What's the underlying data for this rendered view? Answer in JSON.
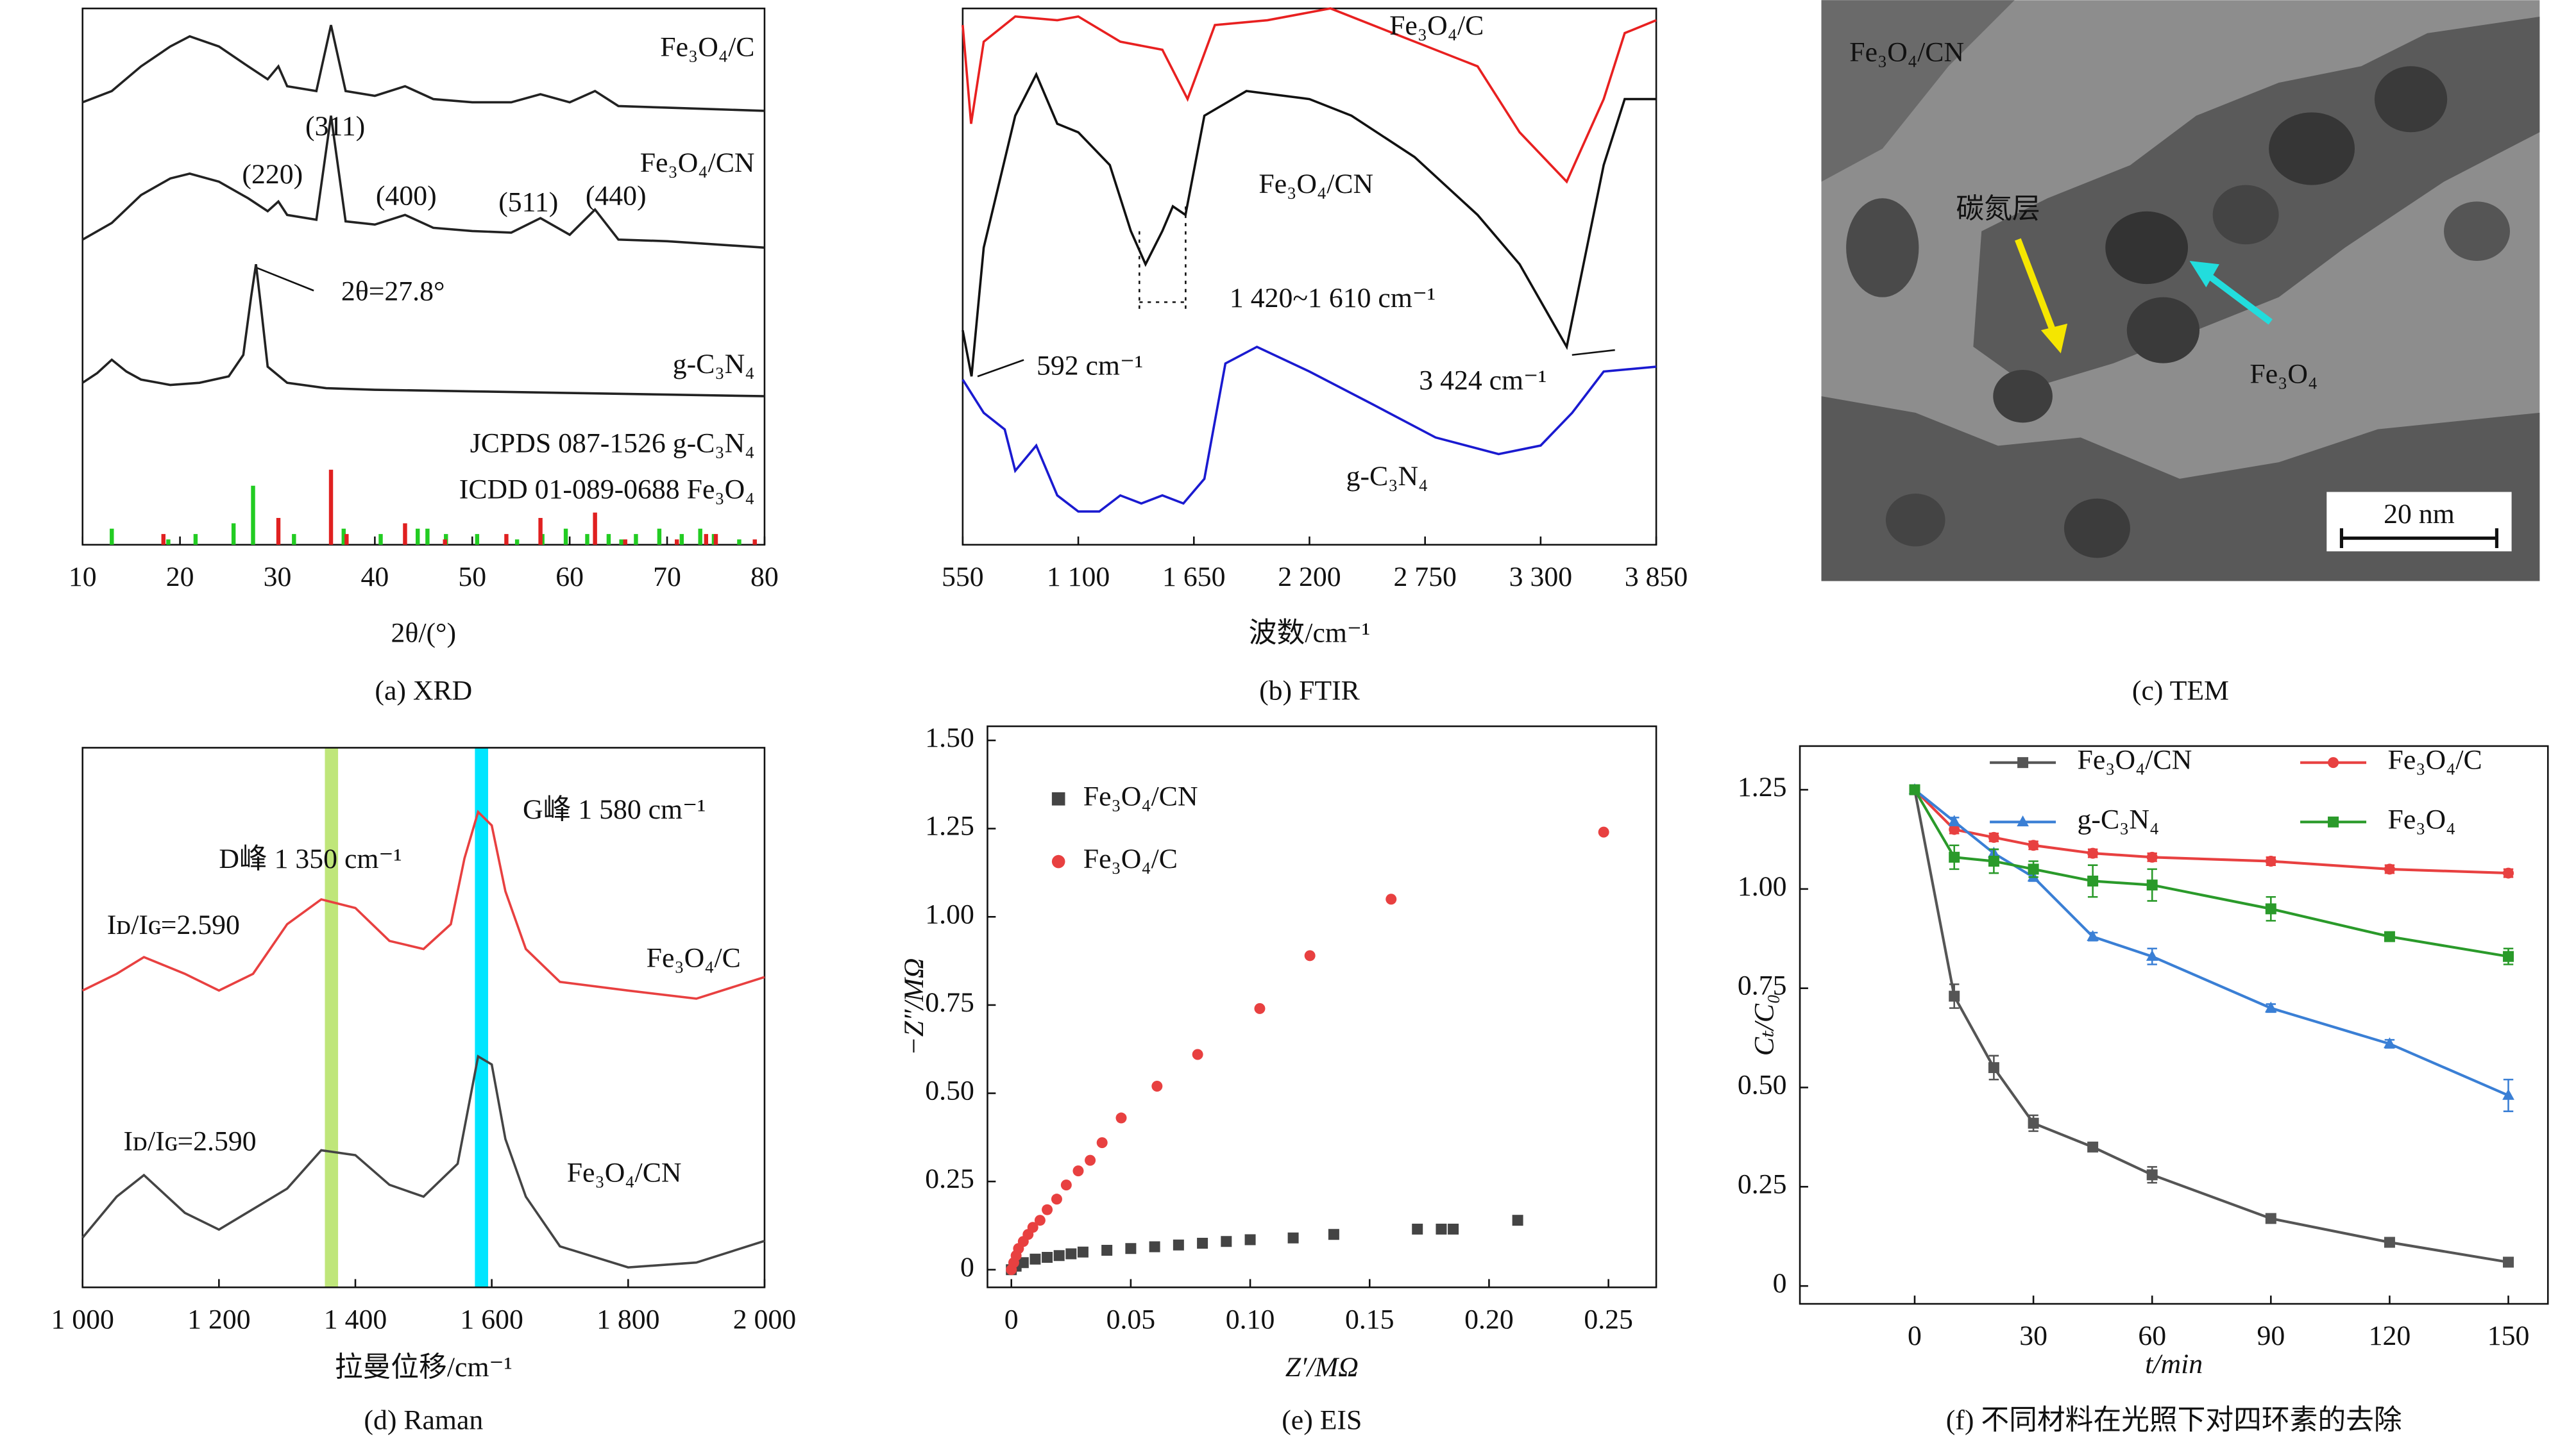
{
  "chart_data": [
    {
      "type": "spectrum",
      "caption": "(a) XRD",
      "xlabel": "2θ/(°)",
      "xlim": [
        10,
        80
      ],
      "xticks": [
        10,
        20,
        30,
        40,
        50,
        60,
        70,
        80
      ],
      "ylim": [
        0,
        100
      ],
      "series": [
        {
          "name": "Fe₃O₄/C",
          "color": "#222222",
          "x": [
            10,
            13,
            16,
            19,
            21,
            24,
            27,
            29,
            30.1,
            31,
            34,
            35.5,
            37,
            40,
            43.1,
            46,
            50,
            54,
            57,
            60,
            62.6,
            65,
            70,
            75,
            80
          ],
          "values": [
            82.5,
            84.6,
            89.2,
            92.9,
            94.8,
            92.9,
            89.2,
            86.8,
            89.2,
            85.5,
            84.6,
            96.9,
            84.6,
            83.7,
            85.5,
            83.1,
            82.5,
            82.5,
            84,
            82.5,
            84.6,
            81.8,
            81.5,
            81.2,
            80.9
          ]
        },
        {
          "name": "Fe₃O₄/CN",
          "color": "#222222",
          "x": [
            10,
            13,
            16,
            19,
            21,
            24,
            27,
            29,
            30.1,
            31,
            34,
            35.5,
            37,
            40,
            43.1,
            46,
            50,
            54,
            57,
            60,
            62.6,
            65,
            70,
            75,
            80
          ],
          "values": [
            56.9,
            60,
            65.2,
            68.3,
            69.2,
            67.7,
            64.6,
            62.2,
            64,
            61.5,
            60.6,
            80,
            60.3,
            59.7,
            61.5,
            59.1,
            58.5,
            58.2,
            60.9,
            57.8,
            62.5,
            56.9,
            56.6,
            56,
            55.4
          ]
        },
        {
          "name": "g-C₃N₄",
          "color": "#222222",
          "x": [
            10,
            11.5,
            13,
            14.5,
            16,
            19,
            22,
            25,
            26.5,
            27.3,
            27.8,
            28.3,
            29,
            31,
            35,
            40,
            50,
            60,
            70,
            80
          ],
          "values": [
            30.2,
            32,
            34.5,
            32.3,
            30.8,
            29.8,
            30.2,
            31.4,
            35.4,
            46.2,
            52.3,
            44.6,
            33.2,
            30.2,
            29.2,
            28.9,
            28.6,
            28.3,
            28,
            27.7
          ]
        }
      ],
      "references": [
        {
          "name": "JCPDS 087-1526 g-C₃N₄",
          "color": "#22cc22",
          "positions": [
            13,
            18.8,
            21.6,
            25.5,
            27.5,
            31.7,
            36.8,
            40.6,
            44.4,
            45.4,
            47.3,
            50.5,
            54.6,
            57.2,
            59.6,
            61.8,
            64,
            65.3,
            66.8,
            69.2,
            71.5,
            73.4,
            74.8,
            77.4
          ],
          "values": [
            3,
            1,
            2,
            4,
            11,
            2,
            3,
            2,
            3,
            3,
            2,
            2,
            1,
            2,
            3,
            2,
            2,
            1,
            2,
            3,
            2,
            3,
            2,
            1
          ]
        },
        {
          "name": "ICDD 01-089-0688 Fe₃O₄",
          "color": "#e02020",
          "positions": [
            18.3,
            30.1,
            35.5,
            37.1,
            43.1,
            47.2,
            53.5,
            57,
            62.6,
            65.7,
            71,
            74,
            75,
            79
          ],
          "values": [
            2,
            5,
            14,
            2,
            4,
            1,
            2,
            5,
            6,
            1,
            1,
            2,
            2,
            1
          ]
        }
      ],
      "annotations": [
        {
          "text": "(311)",
          "color": "#222222"
        },
        {
          "text": "(220)",
          "color": "#222222"
        },
        {
          "text": "(400)",
          "color": "#222222"
        },
        {
          "text": "(511)",
          "color": "#222222"
        },
        {
          "text": "(440)",
          "color": "#222222"
        },
        {
          "text": "2θ=27.8°",
          "color": "#222222"
        }
      ]
    },
    {
      "type": "spectrum",
      "caption": "(b) FTIR",
      "xlabel": "波数/cm⁻¹",
      "xlim": [
        550,
        3850
      ],
      "xticks": [
        550,
        {
          "value": 1100,
          "label": "1 100"
        },
        {
          "value": 1650,
          "label": "1 650"
        },
        {
          "value": 2200,
          "label": "2 200"
        },
        {
          "value": 2750,
          "label": "2 750"
        },
        {
          "value": 3300,
          "label": "3 300"
        },
        {
          "value": 3850,
          "label": "3 850"
        }
      ],
      "ylim": [
        0,
        100
      ],
      "series": [
        {
          "name": "Fe₃O₄/C",
          "color": "#e82020",
          "x": [
            550,
            590,
            650,
            800,
            1000,
            1100,
            1300,
            1500,
            1620,
            1750,
            2000,
            2300,
            2500,
            3000,
            3200,
            3424,
            3600,
            3700,
            3850
          ],
          "values": [
            96.9,
            78.5,
            93.8,
            98.5,
            97.8,
            98.5,
            93.8,
            92.3,
            83.1,
            96.9,
            97.8,
            100,
            96.9,
            89.2,
            76.9,
            67.7,
            83.1,
            95.4,
            97.8
          ]
        },
        {
          "name": "Fe₃O₄/CN",
          "color": "#111111",
          "x": [
            550,
            592,
            650,
            800,
            900,
            1000,
            1100,
            1250,
            1350,
            1420,
            1500,
            1550,
            1610,
            1700,
            1900,
            2200,
            2400,
            2700,
            3000,
            3200,
            3424,
            3600,
            3700,
            3850
          ],
          "values": [
            40,
            31.4,
            55.4,
            80,
            87.7,
            78.5,
            76.9,
            70.8,
            58.5,
            52.3,
            58.5,
            63.1,
            61.5,
            80,
            84.6,
            83.1,
            80,
            72.3,
            61.5,
            52.3,
            36.9,
            70.8,
            83.1,
            83.1
          ]
        },
        {
          "name": "g-C₃N₄",
          "color": "#1a1ad0",
          "x": [
            550,
            650,
            750,
            800,
            900,
            1000,
            1100,
            1200,
            1300,
            1400,
            1500,
            1600,
            1700,
            1800,
            1950,
            2200,
            2500,
            2800,
            3100,
            3300,
            3450,
            3600,
            3850
          ],
          "values": [
            30.8,
            24.6,
            21.5,
            13.8,
            18.5,
            9.2,
            6.2,
            6.2,
            9.2,
            7.7,
            9.2,
            7.7,
            12.3,
            33.8,
            36.9,
            32.3,
            26.2,
            20,
            16.9,
            18.5,
            24.6,
            32.3,
            33.2
          ]
        }
      ],
      "annotations": [
        {
          "text": "1 420~1 610 cm⁻¹",
          "color": "#111111"
        },
        {
          "text": "592 cm⁻¹",
          "color": "#111111"
        },
        {
          "text": "3 424 cm⁻¹",
          "color": "#111111"
        }
      ]
    },
    {
      "type": "image",
      "caption": "(c) TEM",
      "labels": [
        {
          "text": "Fe₃O₄/CN",
          "color": "#eeeeee"
        },
        {
          "text": "碳氮层",
          "color": "#111111"
        },
        {
          "text": "Fe₃O₄",
          "color": "#22dddd"
        }
      ],
      "scale_bar": "20 nm"
    },
    {
      "type": "spectrum",
      "caption": "(d) Raman",
      "xlabel": "拉曼位移/cm⁻¹",
      "xlim": [
        1000,
        2000
      ],
      "xticks": [
        {
          "value": 1000,
          "label": "1 000"
        },
        {
          "value": 1200,
          "label": "1 200"
        },
        {
          "value": 1400,
          "label": "1 400"
        },
        {
          "value": 1600,
          "label": "1 600"
        },
        {
          "value": 1800,
          "label": "1 800"
        },
        {
          "value": 2000,
          "label": "2 000"
        }
      ],
      "ylim": [
        0,
        100
      ],
      "series": [
        {
          "name": "Fe₃O₄/C",
          "color": "#e84040",
          "x": [
            1000,
            1050,
            1090,
            1150,
            1200,
            1250,
            1300,
            1350,
            1400,
            1450,
            1500,
            1540,
            1560,
            1580,
            1600,
            1620,
            1650,
            1700,
            1800,
            1900,
            2000
          ],
          "values": [
            55,
            58.1,
            61.2,
            58.1,
            55,
            58.1,
            67.3,
            71.9,
            70.3,
            64.2,
            62.7,
            67.3,
            79.5,
            88.1,
            85.6,
            73.4,
            62.7,
            56.6,
            55,
            53.5,
            57.5
          ]
        },
        {
          "name": "Fe₃O₄/CN",
          "color": "#444444",
          "x": [
            1000,
            1050,
            1090,
            1150,
            1200,
            1300,
            1350,
            1400,
            1450,
            1500,
            1550,
            1580,
            1600,
            1620,
            1650,
            1700,
            1800,
            1900,
            2000
          ],
          "values": [
            9.2,
            16.8,
            20.8,
            13.8,
            10.7,
            18.3,
            25.4,
            24.5,
            19,
            16.8,
            22.9,
            42.8,
            41.3,
            27.5,
            16.8,
            7.6,
            3.7,
            4.6,
            8.6
          ]
        }
      ],
      "bands": [
        {
          "x": 1365,
          "color": "#bfe67a"
        },
        {
          "x": 1585,
          "color": "#00e5ff"
        }
      ],
      "annotations": [
        {
          "text": "G峰 1 580 cm⁻¹",
          "color": "#111111"
        },
        {
          "text": "D峰 1 350 cm⁻¹",
          "color": "#111111"
        },
        {
          "text": "Iᴅ/Iɢ=2.590",
          "color": "#e02020"
        },
        {
          "text": "Iᴅ/Iɢ=2.590",
          "color": "#111111"
        }
      ]
    },
    {
      "type": "scatter",
      "caption": "(e) EIS",
      "xlabel": "Z′/MΩ",
      "ylabel": "−Z″/MΩ",
      "xlim": [
        -0.01,
        0.27
      ],
      "ylim": [
        -0.05,
        1.54
      ],
      "xticks": [
        0,
        0.05,
        {
          "value": 0.1,
          "label": "0.10"
        },
        0.15,
        {
          "value": 0.2,
          "label": "0.20"
        },
        0.25
      ],
      "yticks": [
        0,
        0.25,
        {
          "value": 0.5,
          "label": "0.50"
        },
        0.75,
        {
          "value": 1,
          "label": "1.00"
        },
        1.25,
        {
          "value": 1.5,
          "label": "1.50"
        }
      ],
      "legend": "upper left",
      "series": [
        {
          "name": "Fe₃O₄/CN",
          "color": "#444444",
          "marker": "square",
          "x": [
            0,
            0.002,
            0.005,
            0.01,
            0.015,
            0.02,
            0.025,
            0.03,
            0.04,
            0.05,
            0.06,
            0.07,
            0.08,
            0.09,
            0.1,
            0.118,
            0.135,
            0.17,
            0.18,
            0.185,
            0.212
          ],
          "values": [
            0,
            0.01,
            0.02,
            0.03,
            0.035,
            0.04,
            0.045,
            0.05,
            0.055,
            0.06,
            0.065,
            0.07,
            0.075,
            0.08,
            0.085,
            0.09,
            0.1,
            0.115,
            0.115,
            0.115,
            0.14
          ]
        },
        {
          "name": "Fe₃O₄/C",
          "color": "#e84040",
          "marker": "circle",
          "x": [
            0,
            0.001,
            0.002,
            0.003,
            0.005,
            0.007,
            0.009,
            0.012,
            0.015,
            0.019,
            0.023,
            0.028,
            0.033,
            0.038,
            0.046,
            0.061,
            0.078,
            0.104,
            0.125,
            0.159,
            0.248
          ],
          "values": [
            0,
            0.02,
            0.04,
            0.06,
            0.08,
            0.1,
            0.12,
            0.14,
            0.17,
            0.2,
            0.24,
            0.28,
            0.31,
            0.36,
            0.43,
            0.52,
            0.61,
            0.74,
            0.89,
            1.05,
            1.24
          ]
        }
      ]
    },
    {
      "type": "line",
      "caption": "(f) 不同材料在光照下对四环素的去除",
      "xlabel": "t/min",
      "ylabel": "Cₜ/C₀",
      "xlim": [
        -29,
        160
      ],
      "ylim": [
        -0.045,
        1.36
      ],
      "xticks": [
        0,
        30,
        60,
        90,
        120,
        150
      ],
      "yticks": [
        0,
        0.25,
        {
          "value": 0.5,
          "label": "0.50"
        },
        0.75,
        {
          "value": 1,
          "label": "1.00"
        },
        1.25
      ],
      "legend": "top",
      "x": [
        0,
        10,
        20,
        30,
        45,
        60,
        90,
        120,
        150
      ],
      "series": [
        {
          "name": "Fe₃O₄/CN",
          "color": "#555555",
          "marker": "square",
          "values": [
            1.25,
            0.73,
            0.55,
            0.41,
            0.35,
            0.28,
            0.17,
            0.11,
            0.06
          ],
          "errors": [
            0,
            0.03,
            0.03,
            0.02,
            0.01,
            0.02,
            0.01,
            0.01,
            0.01
          ]
        },
        {
          "name": "Fe₃O₄/C",
          "color": "#e84040",
          "marker": "circle",
          "values": [
            1.25,
            1.15,
            1.13,
            1.11,
            1.09,
            1.08,
            1.07,
            1.05,
            1.04
          ],
          "errors": [
            0,
            0.01,
            0.01,
            0.01,
            0.01,
            0.01,
            0.01,
            0.01,
            0.01
          ]
        },
        {
          "name": "g-C₃N₄",
          "color": "#3a7fd5",
          "marker": "triangle",
          "values": [
            1.25,
            1.17,
            1.09,
            1.03,
            0.88,
            0.83,
            0.7,
            0.61,
            0.48
          ],
          "errors": [
            0,
            0.01,
            0.01,
            0.01,
            0.01,
            0.02,
            0.01,
            0.01,
            0.04
          ]
        },
        {
          "name": "Fe₃O₄",
          "color": "#2a9a2a",
          "marker": "square",
          "values": [
            1.25,
            1.08,
            1.07,
            1.05,
            1.02,
            1.01,
            0.95,
            0.88,
            0.83
          ],
          "errors": [
            0,
            0.03,
            0.03,
            0.02,
            0.04,
            0.04,
            0.03,
            0.01,
            0.02
          ]
        }
      ]
    }
  ]
}
